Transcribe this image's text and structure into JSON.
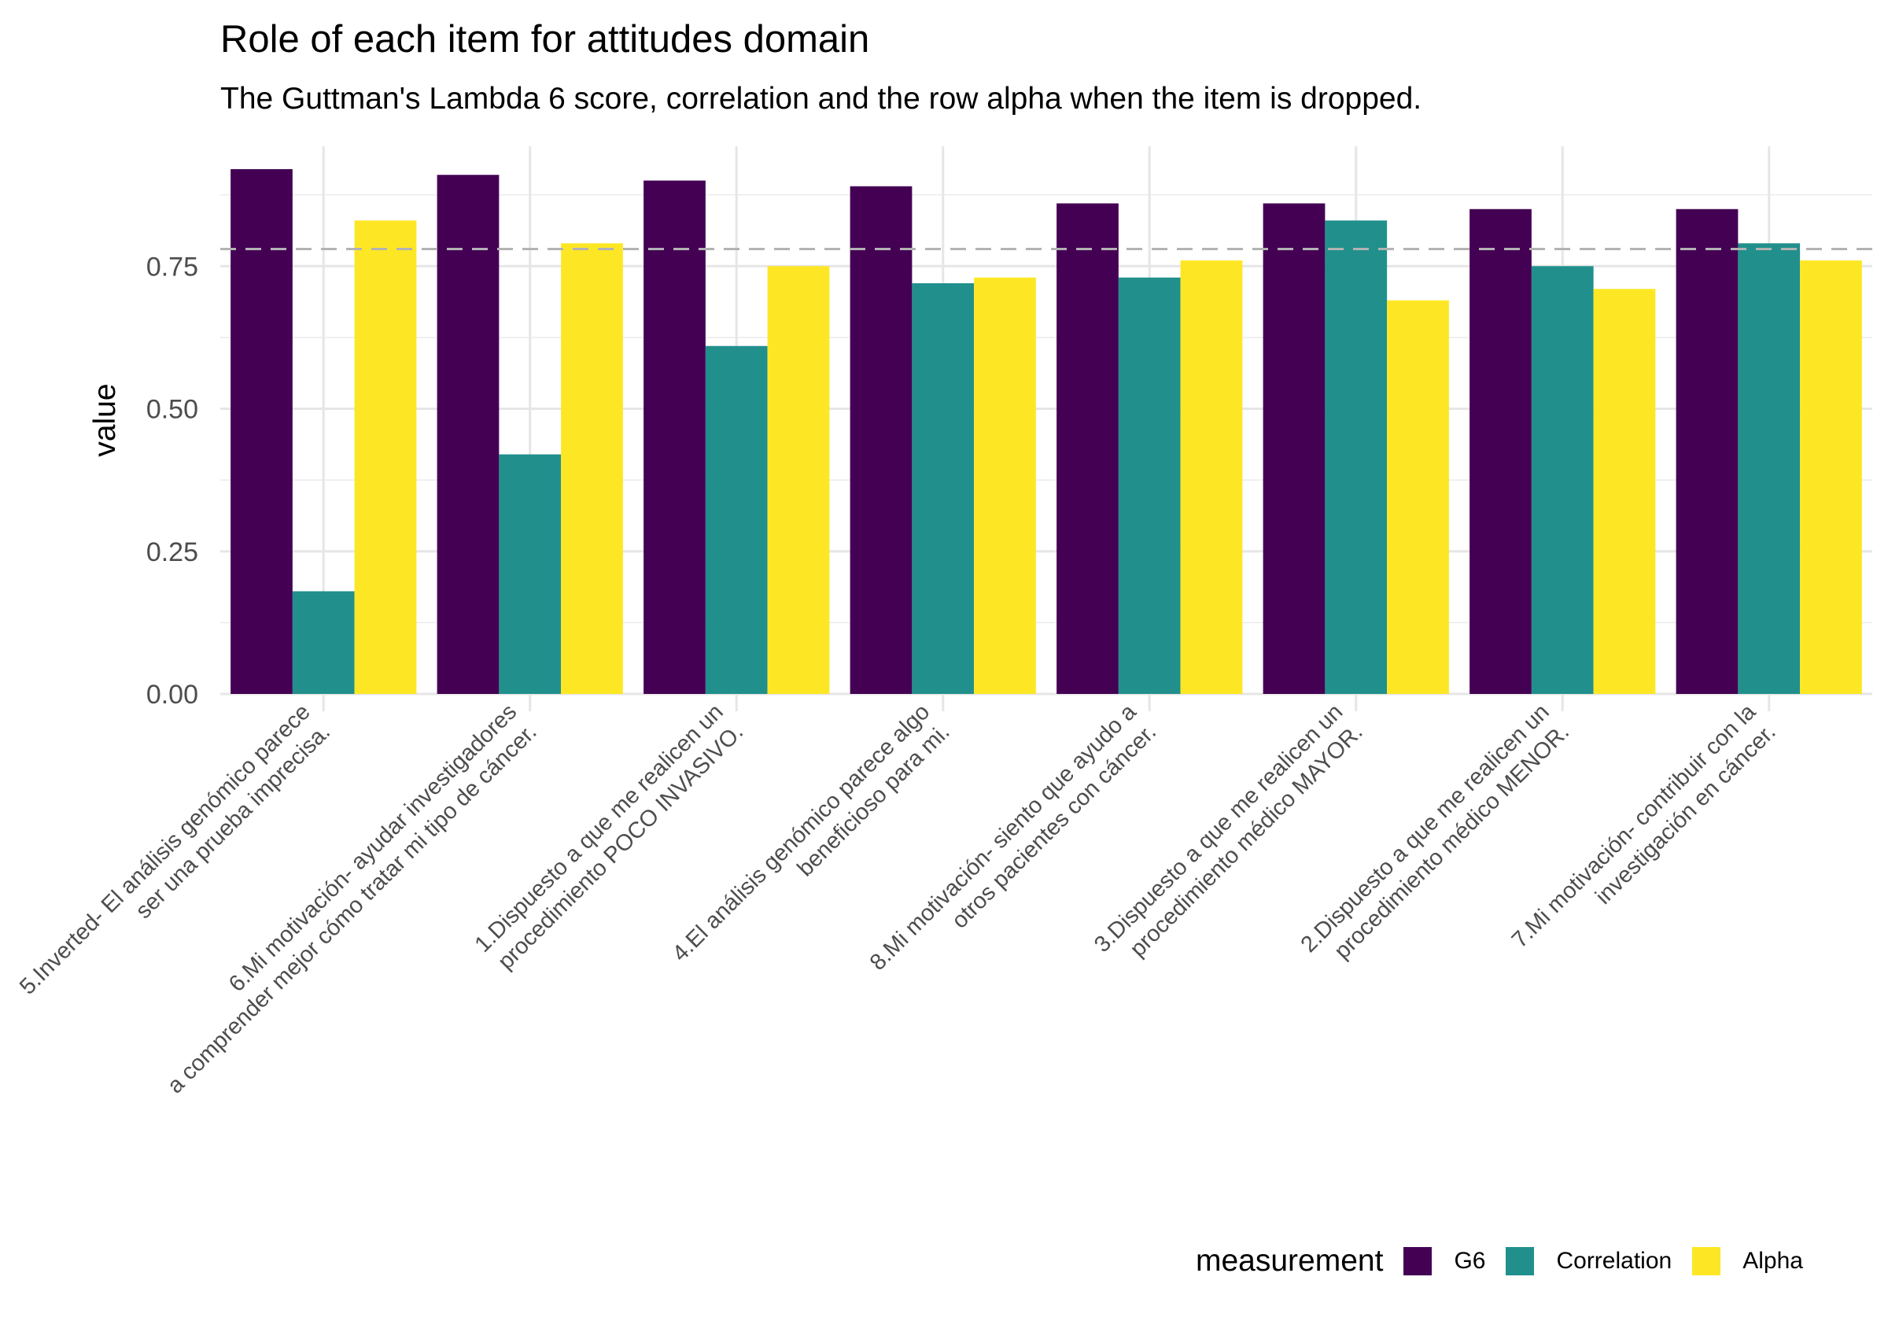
{
  "title": "Role of each item for attitudes domain",
  "subtitle": "The Guttman's Lambda 6 score, correlation and the row alpha when the item is dropped.",
  "legend": {
    "title": "measurement",
    "items": [
      {
        "label": "G6",
        "color": "#440154"
      },
      {
        "label": "Correlation",
        "color": "#21908C"
      },
      {
        "label": "Alpha",
        "color": "#FDE725"
      }
    ]
  },
  "chart_data": {
    "type": "bar",
    "title": "Role of each item for attitudes domain",
    "subtitle": "The Guttman's Lambda 6 score, correlation and the row alpha when the item is dropped.",
    "xlabel": "",
    "ylabel": "value",
    "ylim": [
      0,
      0.96
    ],
    "yticks": [
      "0.00",
      "0.25",
      "0.50",
      "0.75"
    ],
    "reference_line": 0.78,
    "legend_position": "bottom-right",
    "categories": [
      "5.Inverted- El análisis genómico parece\nser una prueba imprecisa.",
      "6.Mi motivación- ayudar investigadores\na comprender mejor cómo tratar mi tipo de cáncer.",
      "1.Dispuesto a que me realicen un\nprocedimiento POCO INVASIVO.",
      "4.El análisis genómico parece algo\nbeneficioso para mi.",
      "8.Mi motivación- siento que ayudo a\notros pacientes con cáncer.",
      "3.Dispuesto a que me realicen un\nprocedimiento médico MAYOR.",
      "2.Dispuesto a que me realicen un\nprocedimiento médico MENOR.",
      "7.Mi motivación- contribuir con la\ninvestigación en cáncer."
    ],
    "series": [
      {
        "name": "G6",
        "color": "#440154",
        "values": [
          0.92,
          0.91,
          0.9,
          0.89,
          0.86,
          0.86,
          0.85,
          0.85
        ]
      },
      {
        "name": "Correlation",
        "color": "#21908C",
        "values": [
          0.18,
          0.42,
          0.61,
          0.72,
          0.73,
          0.83,
          0.75,
          0.79
        ]
      },
      {
        "name": "Alpha",
        "color": "#FDE725",
        "values": [
          0.83,
          0.79,
          0.75,
          0.73,
          0.76,
          0.69,
          0.71,
          0.76
        ]
      }
    ]
  }
}
